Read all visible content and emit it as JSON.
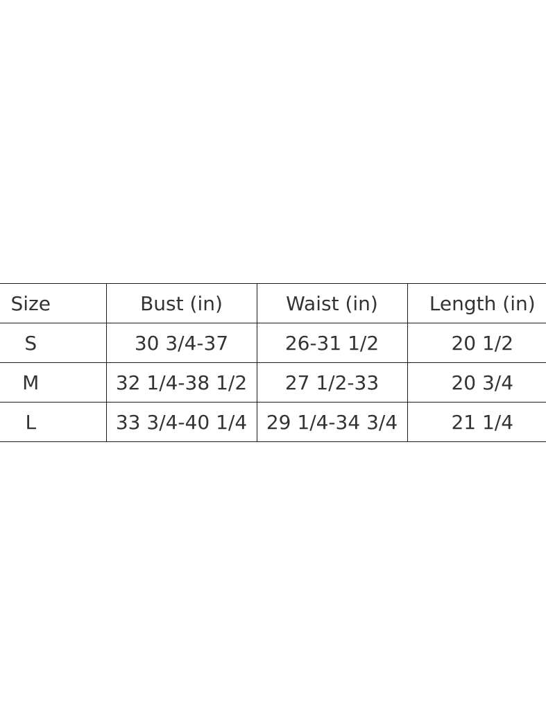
{
  "table": {
    "headers": [
      "Size",
      "Bust (in)",
      "Waist (in)",
      "Length (in)"
    ],
    "rows": [
      [
        "S",
        "30 3/4-37",
        "26-31 1/2",
        "20 1/2"
      ],
      [
        "M",
        "32 1/4-38 1/2",
        "27 1/2-33",
        "20 3/4"
      ],
      [
        "L",
        "33 3/4-40 1/4",
        "29 1/4-34 3/4",
        "21 1/4"
      ]
    ]
  }
}
